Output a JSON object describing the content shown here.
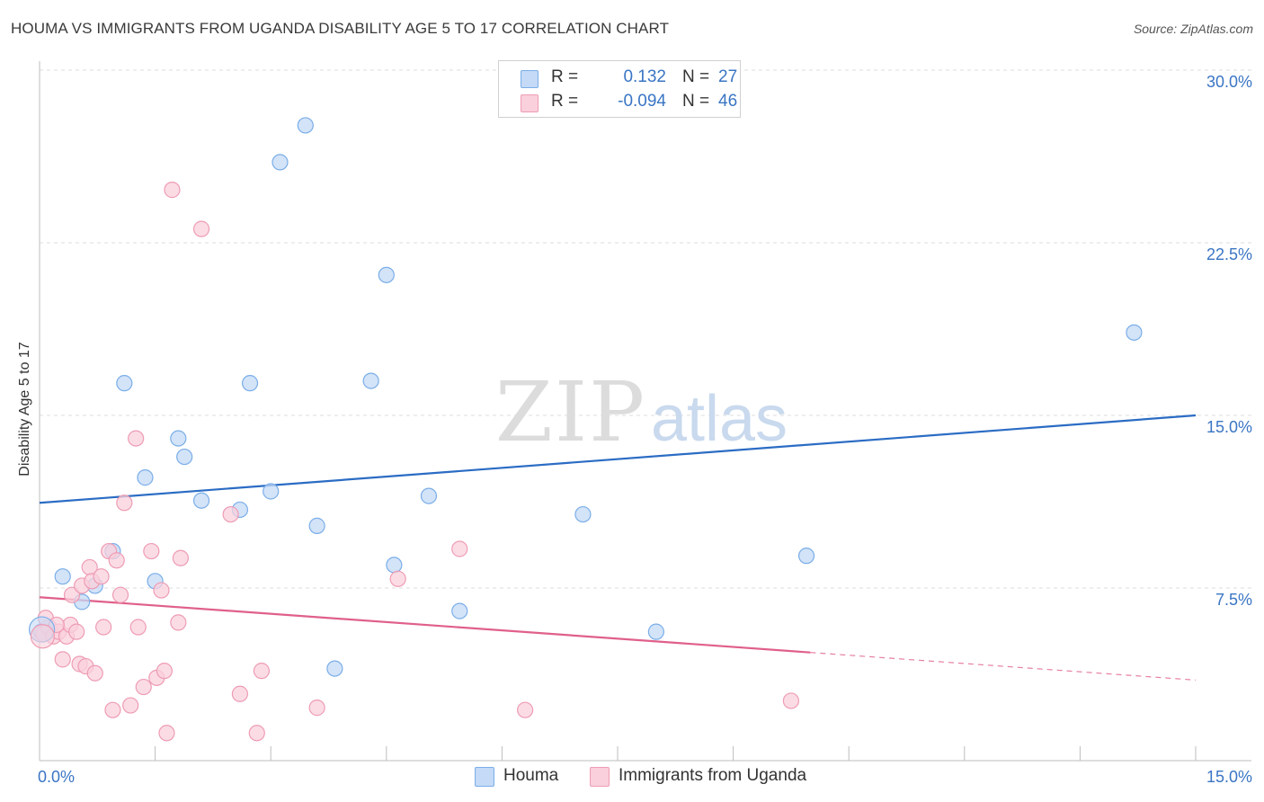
{
  "title": "HOUMA VS IMMIGRANTS FROM UGANDA DISABILITY AGE 5 TO 17 CORRELATION CHART",
  "source": "Source: ZipAtlas.com",
  "watermark": {
    "zip": "ZIP",
    "atlas": "atlas"
  },
  "legend": {
    "r_label": "R =",
    "n_label": "N =",
    "rows": [
      {
        "r": "0.132",
        "n": "27",
        "color": "#7aaee8",
        "fill": "#c4daf6"
      },
      {
        "r": "-0.094",
        "n": "46",
        "color": "#ee9cb4",
        "fill": "#f9d0dc"
      }
    ]
  },
  "bottom_legend": [
    {
      "label": "Houma",
      "color": "#7aaee8",
      "fill": "#c4daf6"
    },
    {
      "label": "Immigrants from Uganda",
      "color": "#ee9cb4",
      "fill": "#f9d0dc"
    }
  ],
  "chart_data": {
    "type": "scatter",
    "title": "HOUMA VS IMMIGRANTS FROM UGANDA DISABILITY AGE 5 TO 17 CORRELATION CHART",
    "xlabel": "",
    "ylabel": "Disability Age 5 to 17",
    "xlim": [
      0,
      15
    ],
    "ylim": [
      0,
      30
    ],
    "x_tick_labels": [
      {
        "value": 0,
        "label": "0.0%"
      },
      {
        "value": 15,
        "label": "15.0%"
      }
    ],
    "y_tick_labels": [
      {
        "value": 7.5,
        "label": "7.5%"
      },
      {
        "value": 15,
        "label": "15.0%"
      },
      {
        "value": 22.5,
        "label": "22.5%"
      },
      {
        "value": 30,
        "label": "30.0%"
      }
    ],
    "x_minor_ticks": [
      0,
      1.5,
      3,
      4.5,
      6,
      7.5,
      9,
      10.5,
      12,
      13.5,
      15
    ],
    "grid": true,
    "series": [
      {
        "name": "Houma",
        "color": "#7aaee8",
        "fill": "#c4daf6",
        "line_color": "#2b6cc4",
        "trend": {
          "x0": 0,
          "y0": 11.2,
          "x1": 15,
          "y1": 15.0,
          "solid_until": 15
        },
        "points": [
          [
            0.02,
            5.6
          ],
          [
            0.3,
            8.0
          ],
          [
            0.55,
            6.9
          ],
          [
            0.72,
            7.6
          ],
          [
            0.95,
            9.1
          ],
          [
            1.1,
            16.4
          ],
          [
            1.37,
            12.3
          ],
          [
            1.5,
            7.8
          ],
          [
            1.8,
            14.0
          ],
          [
            1.88,
            13.2
          ],
          [
            2.1,
            11.3
          ],
          [
            2.6,
            10.9
          ],
          [
            2.73,
            16.4
          ],
          [
            3.12,
            26.0
          ],
          [
            3.0,
            11.7
          ],
          [
            3.45,
            27.6
          ],
          [
            3.6,
            10.2
          ],
          [
            3.83,
            4.0
          ],
          [
            4.3,
            16.5
          ],
          [
            4.5,
            21.1
          ],
          [
            4.6,
            8.5
          ],
          [
            5.05,
            11.5
          ],
          [
            5.45,
            6.5
          ],
          [
            7.05,
            10.7
          ],
          [
            8.0,
            5.6
          ],
          [
            9.95,
            8.9
          ],
          [
            14.2,
            18.6
          ]
        ]
      },
      {
        "name": "Immigrants from Uganda",
        "color": "#ee9cb4",
        "fill": "#f9d0dc",
        "line_color": "#e0608a",
        "trend": {
          "x0": 0,
          "y0": 7.1,
          "x1": 15,
          "y1": 3.5,
          "solid_until": 10.0
        },
        "points": [
          [
            0.05,
            5.5
          ],
          [
            0.12,
            5.8
          ],
          [
            0.18,
            5.4
          ],
          [
            0.25,
            5.6
          ],
          [
            0.3,
            4.4
          ],
          [
            0.35,
            5.4
          ],
          [
            0.4,
            5.9
          ],
          [
            0.42,
            7.2
          ],
          [
            0.48,
            5.6
          ],
          [
            0.52,
            4.2
          ],
          [
            0.55,
            7.6
          ],
          [
            0.6,
            4.1
          ],
          [
            0.65,
            8.4
          ],
          [
            0.68,
            7.8
          ],
          [
            0.72,
            3.8
          ],
          [
            0.8,
            8.0
          ],
          [
            0.83,
            5.8
          ],
          [
            0.9,
            9.1
          ],
          [
            0.95,
            2.2
          ],
          [
            1.0,
            8.7
          ],
          [
            1.05,
            7.2
          ],
          [
            1.1,
            11.2
          ],
          [
            1.18,
            2.4
          ],
          [
            1.25,
            14.0
          ],
          [
            1.28,
            5.8
          ],
          [
            1.35,
            3.2
          ],
          [
            1.45,
            9.1
          ],
          [
            1.52,
            3.6
          ],
          [
            1.58,
            7.4
          ],
          [
            1.62,
            3.9
          ],
          [
            1.65,
            1.2
          ],
          [
            1.72,
            24.8
          ],
          [
            1.8,
            6.0
          ],
          [
            1.83,
            8.8
          ],
          [
            2.1,
            23.1
          ],
          [
            2.48,
            10.7
          ],
          [
            2.6,
            2.9
          ],
          [
            2.82,
            1.2
          ],
          [
            2.88,
            3.9
          ],
          [
            3.6,
            2.3
          ],
          [
            4.65,
            7.9
          ],
          [
            5.45,
            9.2
          ],
          [
            6.3,
            2.2
          ],
          [
            9.75,
            2.6
          ],
          [
            0.08,
            6.2
          ],
          [
            0.22,
            5.9
          ]
        ]
      }
    ]
  }
}
